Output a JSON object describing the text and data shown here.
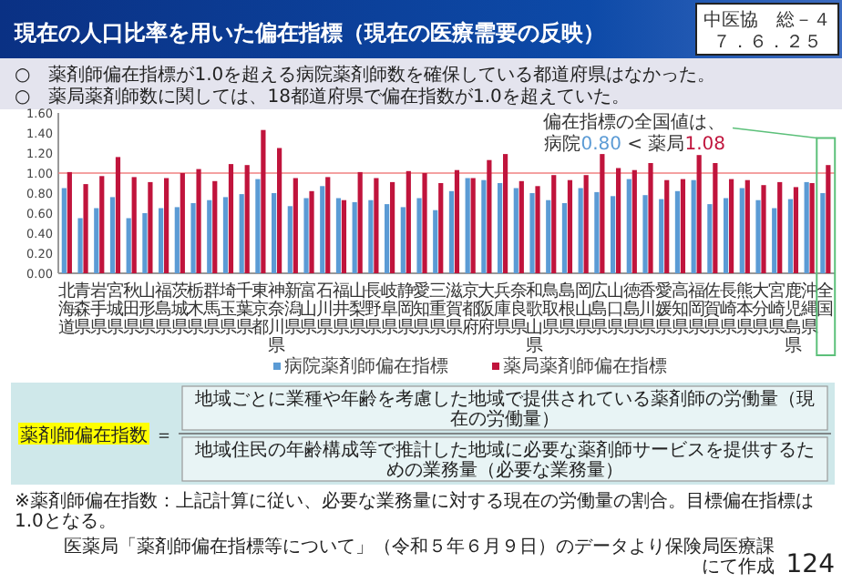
{
  "chart_data": {
    "type": "bar",
    "title": "現在の人口比率を用いた偏在指標（現在の医療需要の反映）",
    "categories": [
      "北海道",
      "青森県",
      "岩手県",
      "宮城県",
      "秋田県",
      "山形県",
      "福島県",
      "茨城県",
      "栃木県",
      "群馬県",
      "埼玉県",
      "千葉県",
      "東京都",
      "神奈川県",
      "新潟県",
      "富山県",
      "石川県",
      "福井県",
      "山梨県",
      "長野県",
      "岐阜県",
      "静岡県",
      "愛知県",
      "三重県",
      "滋賀県",
      "京都府",
      "大阪府",
      "兵庫県",
      "奈良県",
      "和歌山県",
      "鳥取県",
      "島根県",
      "岡山県",
      "広島県",
      "山口県",
      "徳島県",
      "香川県",
      "愛媛県",
      "高知県",
      "福岡県",
      "佐賀県",
      "長崎県",
      "熊本県",
      "大分県",
      "宮崎県",
      "鹿児島県",
      "沖縄県",
      "全国"
    ],
    "series": [
      {
        "name": "病院薬剤師偏在指標",
        "color": "#5b9bd5",
        "values": [
          0.85,
          0.55,
          0.65,
          0.76,
          0.55,
          0.6,
          0.65,
          0.66,
          0.7,
          0.73,
          0.76,
          0.79,
          0.94,
          0.8,
          0.67,
          0.75,
          0.87,
          0.75,
          0.71,
          0.73,
          0.69,
          0.66,
          0.75,
          0.63,
          0.82,
          0.95,
          0.93,
          0.9,
          0.85,
          0.8,
          0.73,
          0.7,
          0.85,
          0.81,
          0.77,
          0.94,
          0.78,
          0.74,
          0.82,
          0.93,
          0.69,
          0.75,
          0.85,
          0.73,
          0.65,
          0.74,
          0.91,
          0.8
        ]
      },
      {
        "name": "薬局薬剤師偏在指標",
        "color": "#c0143c",
        "values": [
          1.01,
          0.89,
          0.97,
          1.16,
          0.96,
          0.91,
          0.95,
          1.0,
          1.04,
          0.92,
          1.09,
          1.08,
          1.43,
          1.25,
          0.95,
          0.82,
          0.96,
          0.73,
          1.01,
          0.95,
          0.91,
          1.02,
          1.0,
          0.9,
          1.03,
          0.95,
          1.13,
          1.19,
          0.92,
          0.87,
          0.98,
          0.93,
          0.98,
          1.19,
          1.05,
          1.03,
          1.1,
          0.93,
          0.94,
          1.18,
          1.1,
          0.94,
          0.93,
          0.88,
          0.91,
          0.86,
          0.9,
          1.08
        ]
      }
    ],
    "ylim": [
      0,
      1.6
    ],
    "yticks": [
      {
        "value": 0,
        "label": "0.00"
      },
      {
        "value": 0.2,
        "label": "0.20"
      },
      {
        "value": 0.4,
        "label": "0.40"
      },
      {
        "value": 0.6,
        "label": "0.60"
      },
      {
        "value": 0.8,
        "label": "0.80"
      },
      {
        "value": 1,
        "label": "1.00"
      },
      {
        "value": 1.2,
        "label": "1.20"
      },
      {
        "value": 1.4,
        "label": "1.40"
      },
      {
        "value": 1.6,
        "label": "1.60"
      }
    ],
    "ref_lines": [
      {
        "axis": "y",
        "value": 1,
        "color": "#f08080"
      }
    ],
    "legend": "bottom",
    "annotations": [
      "中医協　総－４",
      "７．６．２５",
      "○　薬剤師偏在指標が1.0を超える病院薬剤師数を確保している都道府県はなかった。",
      "○　薬局薬剤師数に関しては、18都道府県で偏在指数が1.0を超えていた。",
      "偏在指標の全国値は、",
      "病院0.80 < 薬局1.08",
      "薬剤師偏在指数",
      "＝",
      "地域ごとに業種や年齢を考慮した地域で提供されている薬剤師の労働量（現在の労働量）",
      "地域住民の年齢構成等で推計した地域に必要な薬剤師サービスを提供するための業務量（必要な業務量）",
      "※薬剤師偏在指数：上記計算に従い、必要な業務量に対する現在の労働量の割合。目標偏在指標は1.0となる。",
      "医薬局「薬剤師偏在指標等について」（令和５年６月９日）のデータより保険局医療課にて作成",
      "124"
    ]
  }
}
